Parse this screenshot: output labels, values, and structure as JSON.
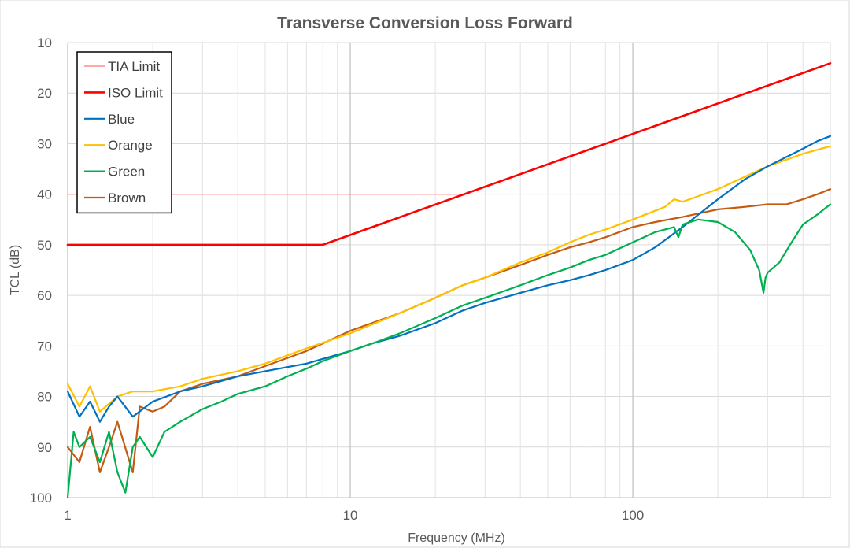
{
  "chart_data": {
    "type": "line",
    "title": "Transverse Conversion Loss Forward",
    "xlabel": "Frequency (MHz)",
    "ylabel": "TCL (dB)",
    "xscale": "log",
    "xlim": [
      1,
      500
    ],
    "ylim": [
      10,
      100
    ],
    "yinverted": true,
    "grid": true,
    "legend_position": "top-left",
    "x_ticks": [
      1,
      10,
      100
    ],
    "x_tick_labels": [
      "1",
      "10",
      "100"
    ],
    "y_ticks": [
      10,
      20,
      30,
      40,
      50,
      60,
      70,
      80,
      90,
      100
    ],
    "y_tick_labels": [
      "10",
      "20",
      "30",
      "40",
      "50",
      "60",
      "70",
      "80",
      "90",
      "100"
    ],
    "series": [
      {
        "name": "TIA Limit",
        "color": "#ff5050",
        "style": "thin",
        "x": [
          1,
          25
        ],
        "y": [
          40,
          40
        ]
      },
      {
        "name": "ISO Limit",
        "color": "#ff0000",
        "style": "thick",
        "x": [
          1,
          8,
          500
        ],
        "y": [
          50,
          50,
          14.1
        ]
      },
      {
        "name": "Blue",
        "color": "#0070c0",
        "style": "medium",
        "x": [
          1,
          1.1,
          1.2,
          1.3,
          1.4,
          1.5,
          1.7,
          2,
          2.5,
          3,
          4,
          5,
          7,
          10,
          12,
          15,
          20,
          25,
          30,
          40,
          50,
          60,
          70,
          80,
          100,
          120,
          150,
          200,
          250,
          300,
          400,
          450,
          500
        ],
        "y": [
          79,
          84,
          81,
          85,
          82,
          80,
          84,
          81,
          79,
          78,
          76,
          75,
          73.5,
          71,
          69.5,
          68,
          65.5,
          63,
          61.5,
          59.5,
          58,
          57,
          56,
          55,
          53,
          50.5,
          46.5,
          41,
          37,
          34.5,
          31,
          29.5,
          28.5
        ]
      },
      {
        "name": "Orange",
        "color": "#ffc000",
        "style": "medium",
        "x": [
          1,
          1.1,
          1.2,
          1.3,
          1.5,
          1.7,
          2,
          2.5,
          3,
          4,
          5,
          7,
          10,
          15,
          20,
          25,
          30,
          40,
          50,
          60,
          70,
          80,
          100,
          130,
          140,
          150,
          200,
          250,
          300,
          400,
          500
        ],
        "y": [
          77.5,
          82,
          78,
          83,
          80,
          79,
          79,
          78,
          76.5,
          75,
          73.5,
          70.5,
          67.5,
          63.5,
          60.5,
          58,
          56.5,
          53.5,
          51.5,
          49.5,
          48,
          47,
          45,
          42.5,
          41,
          41.5,
          39,
          36.5,
          34.5,
          32,
          30.5
        ]
      },
      {
        "name": "Green",
        "color": "#00b050",
        "style": "medium",
        "x": [
          1,
          1.05,
          1.1,
          1.2,
          1.3,
          1.4,
          1.5,
          1.6,
          1.7,
          1.8,
          2,
          2.2,
          2.5,
          3,
          3.5,
          4,
          5,
          6,
          7,
          8,
          10,
          12,
          15,
          20,
          25,
          30,
          40,
          50,
          60,
          70,
          80,
          100,
          120,
          140,
          145,
          150,
          170,
          200,
          230,
          260,
          280,
          290,
          295,
          300,
          330,
          360,
          400,
          450,
          500
        ],
        "y": [
          100,
          87,
          90,
          88,
          93,
          87,
          95,
          99,
          90,
          88,
          92,
          87,
          85,
          82.5,
          81,
          79.5,
          78,
          76,
          74.5,
          73,
          71,
          69.5,
          67.5,
          64.5,
          62,
          60.5,
          58,
          56,
          54.5,
          53,
          52,
          49.5,
          47.5,
          46.5,
          48.5,
          46,
          45,
          45.5,
          47.5,
          51,
          55,
          59.5,
          56.5,
          55.5,
          53.5,
          50,
          46,
          44,
          42
        ]
      },
      {
        "name": "Brown",
        "color": "#c55a11",
        "style": "medium",
        "x": [
          1,
          1.1,
          1.2,
          1.3,
          1.4,
          1.5,
          1.7,
          1.8,
          2,
          2.2,
          2.5,
          3,
          4,
          5,
          7,
          10,
          15,
          20,
          25,
          30,
          40,
          50,
          60,
          70,
          80,
          100,
          120,
          150,
          200,
          250,
          300,
          350,
          400,
          450,
          500
        ],
        "y": [
          90,
          93,
          86,
          95,
          90,
          85,
          95,
          82,
          83,
          82,
          79,
          77.5,
          76,
          74,
          71,
          67,
          63.5,
          60.5,
          58,
          56.5,
          54,
          52,
          50.5,
          49.5,
          48.5,
          46.5,
          45.5,
          44.5,
          43,
          42.5,
          42,
          42,
          41,
          40,
          39
        ]
      }
    ]
  }
}
